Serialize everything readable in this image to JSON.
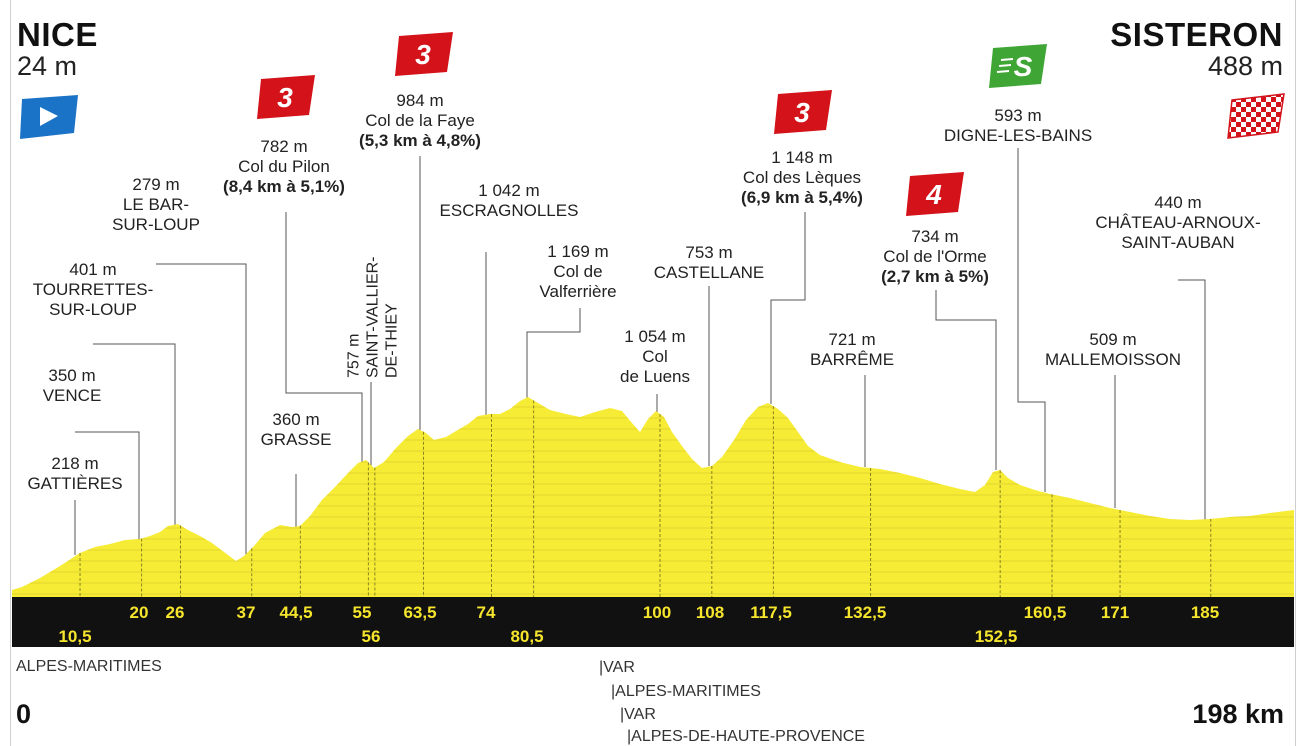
{
  "start": {
    "name": "NICE",
    "altitude": "24 m",
    "km": "0",
    "flag_icon": "start-flag-icon"
  },
  "finish": {
    "name": "SISTERON",
    "altitude": "488 m",
    "km": "198 km",
    "flag_icon": "finish-checkered-flag-icon"
  },
  "colors": {
    "profile_fill": "#f7ec35",
    "band": "#111111",
    "km_text": "#f5e52c",
    "climb_badge": "#d4121a",
    "sprint_badge": "#3fa535",
    "start_flag": "#1a73c6"
  },
  "points": [
    {
      "id": "gattieres",
      "km": 10.5,
      "km_label": "10,5",
      "alt": "218 m",
      "name": "GATTIÈRES",
      "name_lines": [
        "GATTIÈRES"
      ]
    },
    {
      "id": "vence",
      "km": 20,
      "km_label": "20",
      "alt": "350 m",
      "name_lines": [
        "VENCE"
      ]
    },
    {
      "id": "tourrettes",
      "km": 26,
      "km_label": "26",
      "alt": "401 m",
      "name_lines": [
        "TOURRETTES-",
        "SUR-LOUP"
      ]
    },
    {
      "id": "bar-sur-loup",
      "km": 37,
      "km_label": "37",
      "alt": "279 m",
      "name_lines": [
        "LE BAR-",
        "SUR-LOUP"
      ]
    },
    {
      "id": "grasse",
      "km": 44.5,
      "km_label": "44,5",
      "alt": "360 m",
      "name_lines": [
        "GRASSE"
      ]
    },
    {
      "id": "pilon",
      "km": 55,
      "km_label": "55",
      "alt": "782 m",
      "name_lines": [
        "Col du Pilon"
      ],
      "climb": "(8,4 km à 5,1%)",
      "category": "3"
    },
    {
      "id": "saint-vallier",
      "km": 56,
      "km_label": "56",
      "alt": "757 m",
      "name_lines": [
        "SAINT-VALLIER-",
        "DE-THIEY"
      ]
    },
    {
      "id": "faye",
      "km": 63.5,
      "km_label": "63,5",
      "alt": "984 m",
      "name_lines": [
        "Col de la Faye"
      ],
      "climb": "(5,3 km à 4,8%)",
      "category": "3"
    },
    {
      "id": "escragnolles",
      "km": 74,
      "km_label": "74",
      "alt": "1 042 m",
      "name_lines": [
        "ESCRAGNOLLES"
      ]
    },
    {
      "id": "valferriere",
      "km": 80.5,
      "km_label": "80,5",
      "alt": "1 169 m",
      "name_lines": [
        "Col de",
        "Valferrière"
      ]
    },
    {
      "id": "luens",
      "km": 100,
      "km_label": "100",
      "alt": "1 054 m",
      "name_lines": [
        "Col",
        "de Luens"
      ]
    },
    {
      "id": "castellane",
      "km": 108,
      "km_label": "108",
      "alt": "753 m",
      "name_lines": [
        "CASTELLANE"
      ]
    },
    {
      "id": "leques",
      "km": 117.5,
      "km_label": "117,5",
      "alt": "1 148 m",
      "name_lines": [
        "Col des Lèques"
      ],
      "climb": "(6,9 km à 5,4%)",
      "category": "3"
    },
    {
      "id": "barreme",
      "km": 132.5,
      "km_label": "132,5",
      "alt": "721 m",
      "name_lines": [
        "BARRÊME"
      ]
    },
    {
      "id": "orme",
      "km": 152.5,
      "km_label": "152,5",
      "alt": "734 m",
      "name_lines": [
        "Col de l'Orme"
      ],
      "climb": "(2,7 km à 5%)",
      "category": "4"
    },
    {
      "id": "digne",
      "km": 160.5,
      "km_label": "160,5",
      "alt": "593 m",
      "name_lines": [
        "DIGNE-LES-BAINS"
      ],
      "sprint": "S"
    },
    {
      "id": "mallemoisson",
      "km": 171,
      "km_label": "171",
      "alt": "509 m",
      "name_lines": [
        "MALLEMOISSON"
      ]
    },
    {
      "id": "chateau-arnoux",
      "km": 185,
      "km_label": "185",
      "alt": "440 m",
      "name_lines": [
        "CHÂTEAU-ARNOUX-",
        "SAINT-AUBAN"
      ]
    }
  ],
  "departments": {
    "alpes_maritimes_1": "ALPES-MARITIMES",
    "var_1": "|VAR",
    "alpes_maritimes_2": "|ALPES-MARITIMES",
    "var_2": "|VAR",
    "alpes_haute_provence": "|ALPES-DE-HAUTE-PROVENCE"
  }
}
